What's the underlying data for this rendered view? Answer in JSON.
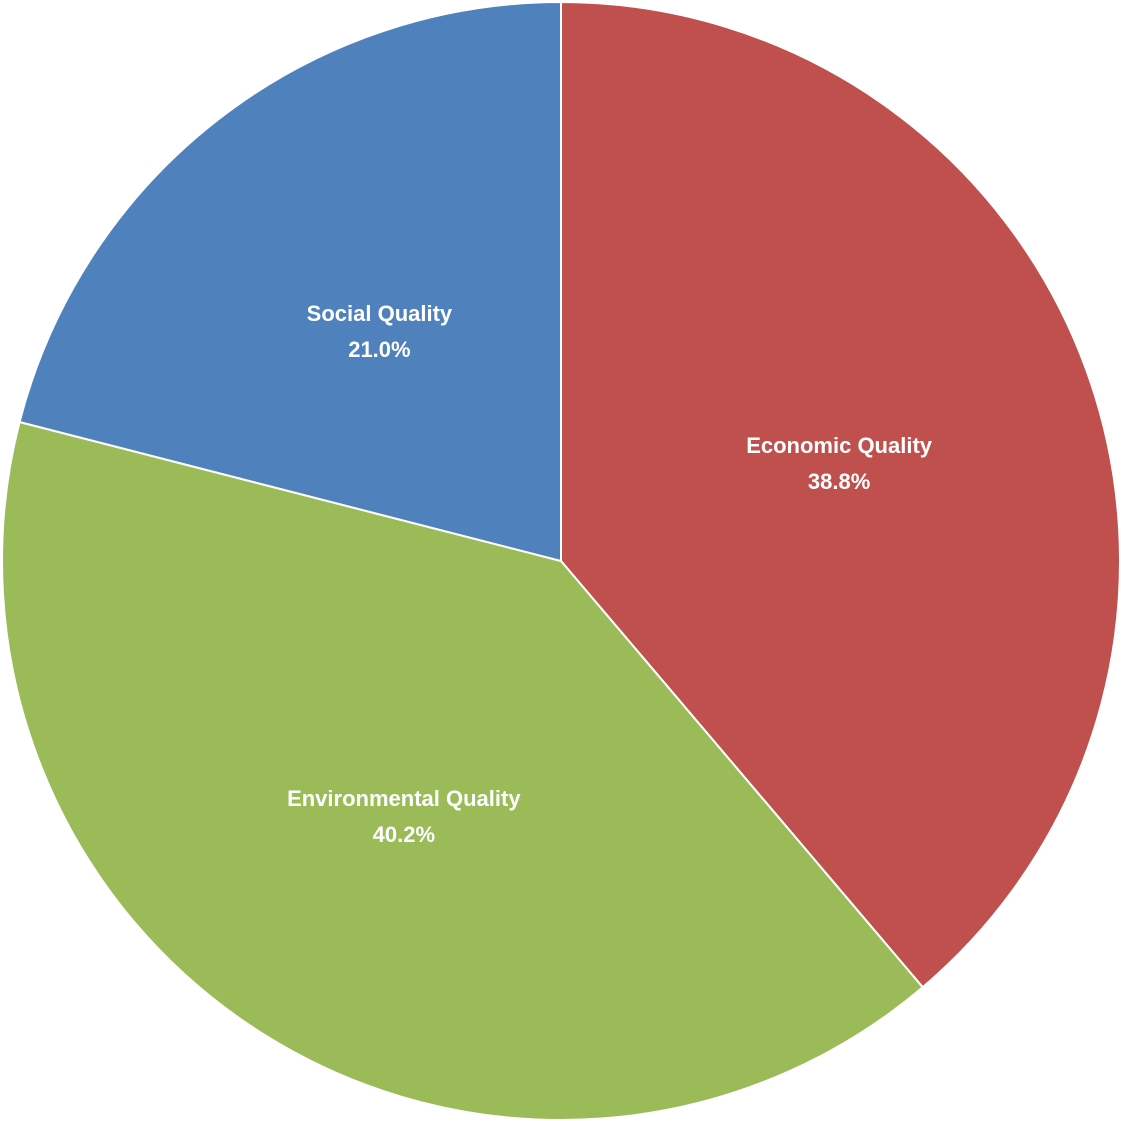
{
  "chart_data": {
    "type": "pie",
    "title": "",
    "start_angle_deg": 0,
    "direction": "clockwise",
    "slices": [
      {
        "label": "Economic Quality",
        "value": 38.8,
        "value_label": "38.8%",
        "color": "#C0504D"
      },
      {
        "label": "Environmental Quality",
        "value": 40.2,
        "value_label": "40.2%",
        "color": "#9BBB59"
      },
      {
        "label": "Social Quality",
        "value": 21.0,
        "value_label": "21.0%",
        "color": "#4F81BD"
      }
    ],
    "legend": "none",
    "data_labels": "inside"
  }
}
